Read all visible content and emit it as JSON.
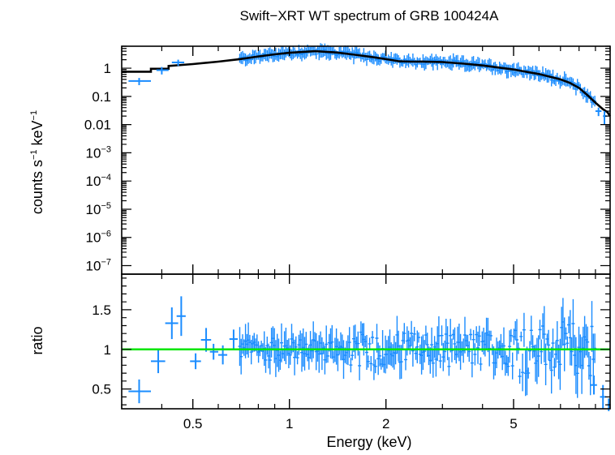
{
  "chart_data": [
    {
      "panel": "spectrum",
      "type": "scatter",
      "title": "Swift−XRT WT spectrum of GRB 100424A",
      "ylabel_parts": [
        "counts s",
        "−1",
        " keV",
        "−1"
      ],
      "xscale": "log",
      "yscale": "log",
      "xlim": [
        0.3,
        10
      ],
      "ylim": [
        5e-08,
        6
      ],
      "y_ticks": [
        {
          "value": 1,
          "label": "1",
          "sup": ""
        },
        {
          "value": 0.1,
          "label": "0.1",
          "sup": ""
        },
        {
          "value": 0.01,
          "label": "0.01",
          "sup": ""
        },
        {
          "value": 0.001,
          "label": "10",
          "sup": "−3"
        },
        {
          "value": 0.0001,
          "label": "10",
          "sup": "−4"
        },
        {
          "value": 1e-05,
          "label": "10",
          "sup": "−5"
        },
        {
          "value": 1e-06,
          "label": "10",
          "sup": "−6"
        },
        {
          "value": 1e-07,
          "label": "10",
          "sup": "−7"
        }
      ],
      "model_color": "#000000",
      "data_color": "#1a8cff",
      "model": {
        "x": [
          0.3,
          0.37,
          0.37,
          0.42,
          0.42,
          0.5,
          0.6,
          0.7,
          0.8,
          0.9,
          1.0,
          1.2,
          1.4,
          1.6,
          1.8,
          2.0,
          2.2,
          2.4,
          2.6,
          3.0,
          3.5,
          4.0,
          5.0,
          6.0,
          7.0,
          7.5,
          8.0,
          8.5,
          9.0,
          9.5,
          9.8,
          10.0
        ],
        "y": [
          0.75,
          0.75,
          0.95,
          0.95,
          1.2,
          1.4,
          1.7,
          2.1,
          2.6,
          3.1,
          3.5,
          4.0,
          3.6,
          3.0,
          2.5,
          2.1,
          1.75,
          1.7,
          1.72,
          1.65,
          1.45,
          1.25,
          0.9,
          0.62,
          0.4,
          0.3,
          0.2,
          0.11,
          0.06,
          0.035,
          0.028,
          0.02
        ]
      },
      "data_points": [
        {
          "x": 0.34,
          "y": 0.35,
          "xlo": 0.315,
          "xhi": 0.37,
          "yerr": 0.1
        },
        {
          "x": 0.4,
          "y": 0.85,
          "xlo": 0.385,
          "xhi": 0.42,
          "yerr": 0.25
        },
        {
          "x": 0.45,
          "y": 1.6,
          "xlo": 0.43,
          "xhi": 0.47,
          "yerr": 0.4
        },
        {
          "x": 9.2,
          "y": 0.03,
          "xlo": 9.0,
          "xhi": 9.4,
          "yerr": 0.01
        },
        {
          "x": 9.6,
          "y": 0.02,
          "xlo": 9.5,
          "xhi": 9.75,
          "yerr": 0.01
        }
      ]
    },
    {
      "panel": "ratio",
      "type": "scatter",
      "xlabel": "Energy (keV)",
      "ylabel": "ratio",
      "xscale": "log",
      "xlim": [
        0.3,
        10
      ],
      "ylim": [
        0.25,
        1.95
      ],
      "x_ticks": [
        {
          "value": 0.5,
          "label": "0.5"
        },
        {
          "value": 1,
          "label": "1"
        },
        {
          "value": 2,
          "label": "2"
        },
        {
          "value": 5,
          "label": "5"
        }
      ],
      "y_ticks": [
        {
          "value": 0.5,
          "label": "0.5"
        },
        {
          "value": 1,
          "label": "1"
        },
        {
          "value": 1.5,
          "label": "1.5"
        }
      ],
      "reference_line": {
        "y": 1,
        "color": "#00e600"
      },
      "data_color": "#1a8cff",
      "data_points": [
        {
          "x": 0.34,
          "y": 0.47,
          "xlo": 0.315,
          "xhi": 0.37,
          "yerr": 0.15
        },
        {
          "x": 0.39,
          "y": 0.85,
          "xlo": 0.37,
          "xhi": 0.41,
          "yerr": 0.15
        },
        {
          "x": 0.43,
          "y": 1.33,
          "xlo": 0.41,
          "xhi": 0.45,
          "yerr": 0.2
        },
        {
          "x": 0.46,
          "y": 1.42,
          "xlo": 0.445,
          "xhi": 0.475,
          "yerr": 0.25
        },
        {
          "x": 0.51,
          "y": 0.85,
          "xlo": 0.49,
          "xhi": 0.53,
          "yerr": 0.1
        },
        {
          "x": 0.55,
          "y": 1.12,
          "xlo": 0.53,
          "xhi": 0.57,
          "yerr": 0.15
        },
        {
          "x": 0.58,
          "y": 0.97,
          "xlo": 0.565,
          "xhi": 0.6,
          "yerr": 0.1
        },
        {
          "x": 0.62,
          "y": 0.93,
          "xlo": 0.6,
          "xhi": 0.64,
          "yerr": 0.12
        },
        {
          "x": 0.67,
          "y": 1.13,
          "xlo": 0.65,
          "xhi": 0.69,
          "yerr": 0.12
        },
        {
          "x": 8.9,
          "y": 0.55,
          "xlo": 8.7,
          "xhi": 9.1,
          "yerr": 0.12
        },
        {
          "x": 9.5,
          "y": 0.4,
          "xlo": 9.3,
          "xhi": 9.7,
          "yerr": 0.15
        },
        {
          "x": 9.9,
          "y": 0.3,
          "xlo": 9.82,
          "xhi": 9.98,
          "yerr": 0.08
        }
      ]
    }
  ]
}
